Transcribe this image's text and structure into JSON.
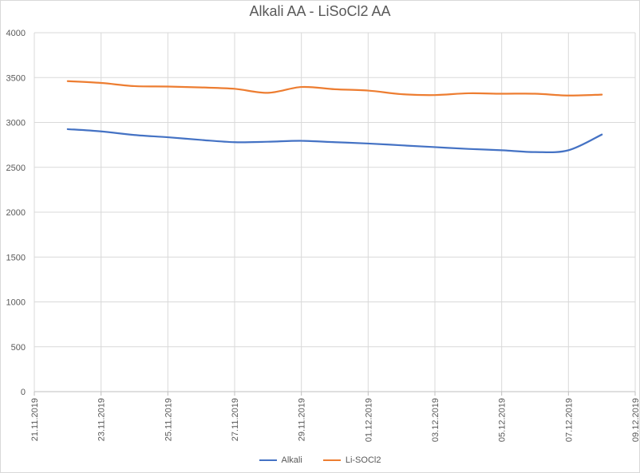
{
  "chart_data": {
    "type": "line",
    "title": "Alkali AA - LiSoCl2 AA",
    "xlabel": "",
    "ylabel": "",
    "x_ticks": [
      "21.11.2019",
      "23.11.2019",
      "25.11.2019",
      "27.11.2019",
      "29.11.2019",
      "01.12.2019",
      "03.12.2019",
      "05.12.2019",
      "07.12.2019",
      "09.12.2019"
    ],
    "x_range": [
      "21.11.2019",
      "09.12.2019"
    ],
    "ylim": [
      0,
      4000
    ],
    "y_ticks": [
      0,
      500,
      1000,
      1500,
      2000,
      2500,
      3000,
      3500,
      4000
    ],
    "x": [
      "22.11.2019",
      "23.11.2019",
      "24.11.2019",
      "25.11.2019",
      "26.11.2019",
      "27.11.2019",
      "28.11.2019",
      "29.11.2019",
      "30.11.2019",
      "01.12.2019",
      "02.12.2019",
      "03.12.2019",
      "04.12.2019",
      "05.12.2019",
      "06.12.2019",
      "07.12.2019",
      "08.12.2019"
    ],
    "series": [
      {
        "name": "Alkali",
        "color": "#4472c4",
        "values": [
          2925,
          2900,
          2860,
          2835,
          2805,
          2780,
          2785,
          2795,
          2780,
          2765,
          2745,
          2725,
          2705,
          2690,
          2670,
          2690,
          2865
        ]
      },
      {
        "name": "Li-SOCl2",
        "color": "#ed7d31",
        "values": [
          3460,
          3440,
          3405,
          3400,
          3390,
          3375,
          3330,
          3395,
          3370,
          3355,
          3315,
          3305,
          3325,
          3320,
          3320,
          3300,
          3310
        ]
      }
    ],
    "grid": true,
    "legend_position": "bottom"
  }
}
